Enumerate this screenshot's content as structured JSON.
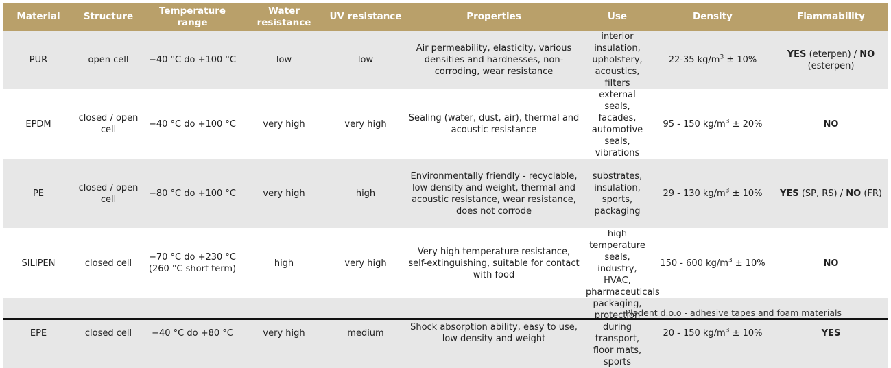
{
  "headers": [
    "Material",
    "Structure",
    "Temperature range",
    "Water resistance",
    "UV resistance",
    "Properties",
    "Use",
    "Density",
    "Flammability"
  ],
  "rows": [
    {
      "material": "PUR",
      "structure": "open cell",
      "temperature": "−40 °C do +100 °C",
      "water": "low",
      "uv": "low",
      "properties": "Air permeability, elasticity, various densities and hardnesses, non-corroding, wear resistance",
      "use": "interior insulation, upholstery, acoustics, filters",
      "density_pre": "22-35 kg/m",
      "density_post": " ± 10%",
      "flam": [
        {
          "text": "YES",
          "bold": true
        },
        {
          "text": " (eterpen) / ",
          "bold": false
        },
        {
          "text": "NO",
          "bold": true
        },
        {
          "text": " (esterpen)",
          "bold": false
        }
      ]
    },
    {
      "material": "EPDM",
      "structure": "closed / open cell",
      "temperature": "−40 °C do +100 °C",
      "water": "very high",
      "uv": "very high",
      "properties": "Sealing (water, dust, air), thermal and acoustic resistance",
      "use": "external seals, facades, automotive seals, vibrations",
      "density_pre": "95 - 150 kg/m",
      "density_post": " ± 20%",
      "flam": [
        {
          "text": "NO",
          "bold": true
        }
      ]
    },
    {
      "material": "PE",
      "structure": "closed / open cell",
      "temperature": "−80 °C do +100 °C",
      "water": "very high",
      "uv": "high",
      "properties": "Environmentally friendly - recyclable, low density and weight, thermal and acoustic resistance, wear resistance, does not corrode",
      "use": "substrates, insulation, sports, packaging",
      "density_pre": "29 - 130 kg/m",
      "density_post": " ± 10%",
      "flam": [
        {
          "text": "YES",
          "bold": true
        },
        {
          "text": " (SP, RS) / ",
          "bold": false
        },
        {
          "text": "NO",
          "bold": true
        },
        {
          "text": " (FR)",
          "bold": false
        }
      ]
    },
    {
      "material": "SILIPEN",
      "structure": "closed cell",
      "temperature": "−70 °C do +230 °C (260 °C short term)",
      "water": "high",
      "uv": "very high",
      "properties": "Very high temperature resistance, self-extinguishing, suitable for contact with food",
      "use": "high temperature seals, industry, HVAC, pharmaceuticals",
      "density_pre": "150 - 600 kg/m",
      "density_post": " ± 10%",
      "flam": [
        {
          "text": "NO",
          "bold": true
        }
      ]
    },
    {
      "material": "EPE",
      "structure": "closed cell",
      "temperature": "−40 °C do +80 °C",
      "water": "very high",
      "uv": "medium",
      "properties": "Shock absorption ability, easy to use, low density and weight",
      "use": "packaging, protection during transport, floor mats, sports",
      "density_pre": "20 - 150 kg/m",
      "density_post": " ± 10%",
      "flam": [
        {
          "text": "YES",
          "bold": true
        }
      ]
    }
  ],
  "density_sup": "3",
  "footer": "Pladent d.o.o - adhesive tapes and foam materials",
  "colors": {
    "header_bg": "#b9a06a",
    "row_shade": "#e7e7e7"
  }
}
